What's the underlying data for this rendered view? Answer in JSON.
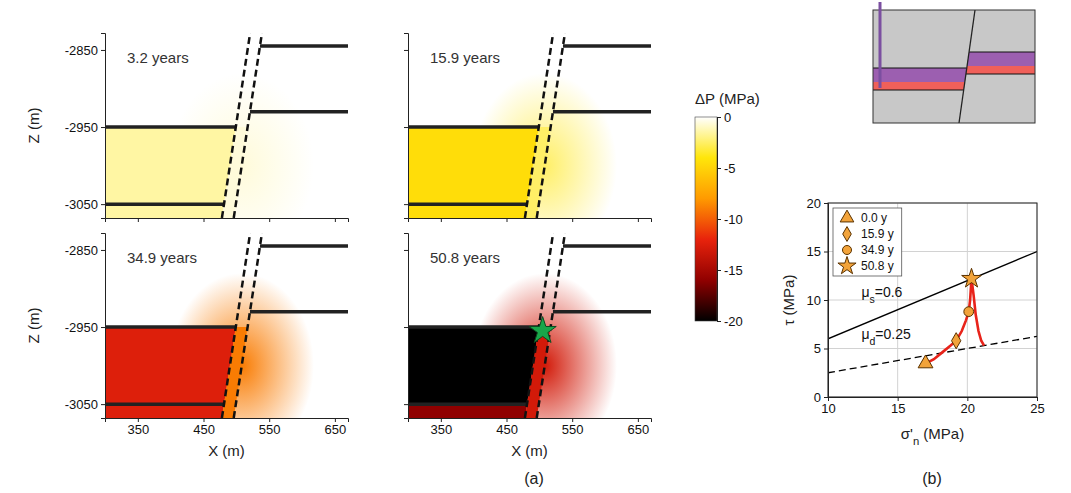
{
  "chart_data": [
    {
      "type": "heatmap",
      "title": "3.2 years",
      "ylabel": "Z (m)",
      "xlim": [
        300,
        670
      ],
      "ylim": [
        -3068,
        -2828
      ],
      "xticks": [
        350,
        450,
        550,
        650
      ],
      "yticks": [
        -3050,
        -2950,
        -2850
      ],
      "tick_labels": "y",
      "cells": {
        "reservoir": -1.5,
        "below": -1.5,
        "fault": -0.6
      }
    },
    {
      "type": "heatmap",
      "title": "15.9 years",
      "xlim": [
        300,
        670
      ],
      "ylim": [
        -3068,
        -2828
      ],
      "xticks": [
        350,
        450,
        550,
        650
      ],
      "yticks": [
        -3050,
        -2950,
        -2850
      ],
      "tick_labels": false,
      "cells": {
        "reservoir": -4.5,
        "below": -4.5,
        "fault": -2.5
      }
    },
    {
      "type": "heatmap",
      "title": "34.9 years",
      "xlabel": "X (m)",
      "ylabel": "Z (m)",
      "xlim": [
        300,
        670
      ],
      "ylim": [
        -3068,
        -2828
      ],
      "xticks": [
        350,
        450,
        550,
        650
      ],
      "yticks": [
        -3050,
        -2950,
        -2850
      ],
      "tick_labels": true,
      "cells": {
        "reservoir": -12.5,
        "below": -12.5,
        "fault": -9
      }
    },
    {
      "type": "heatmap",
      "title": "50.8 years",
      "xlabel": "X (m)",
      "xlim": [
        300,
        670
      ],
      "ylim": [
        -3068,
        -2828
      ],
      "xticks": [
        350,
        450,
        550,
        650
      ],
      "yticks": [
        -3050,
        -2950,
        -2850
      ],
      "tick_labels": "x",
      "cells": {
        "reservoir": -20,
        "below": -16,
        "fault": -13
      },
      "points": [
        {
          "x": 505,
          "y": -2955
        }
      ],
      "marker": "star",
      "color": "#1aa64a"
    },
    {
      "type": "line",
      "xlabel": "σ'n (MPa)",
      "ylabel": "τ (MPa)",
      "xlim": [
        10,
        25
      ],
      "ylim": [
        0,
        20
      ],
      "xticks": [
        10,
        15,
        20,
        25
      ],
      "yticks": [
        0,
        5,
        10,
        15,
        20
      ],
      "grid": true,
      "legend": "upper left",
      "series": [
        {
          "name": "μs=0.6",
          "x": [
            10,
            25
          ],
          "values": [
            6,
            15
          ],
          "color": "#000000",
          "line_style": "solid"
        },
        {
          "name": "μd=0.25",
          "x": [
            10,
            25
          ],
          "values": [
            2.5,
            6.25
          ],
          "color": "#000000",
          "line_style": "dashed"
        },
        {
          "x": [
            17.0,
            17.6,
            18.2,
            18.8,
            19.2,
            19.6,
            19.9,
            20.1,
            20.2,
            20.3,
            20.45,
            20.6,
            20.8,
            21.0,
            21.2
          ],
          "values": [
            3.45,
            3.9,
            4.6,
            5.3,
            5.8,
            6.8,
            7.9,
            8.8,
            10.0,
            12.2,
            10.5,
            8.5,
            6.8,
            5.8,
            5.3
          ],
          "color": "#e8231a",
          "line_style": "solid"
        },
        {
          "name": "0.0 y",
          "type": "scatter",
          "x": [
            17.0
          ],
          "values": [
            3.45
          ],
          "marker": "triangle",
          "color": "#f2a33a"
        },
        {
          "name": "15.9 y",
          "type": "scatter",
          "x": [
            19.2
          ],
          "values": [
            5.8
          ],
          "marker": "diamond",
          "color": "#f2a33a"
        },
        {
          "name": "34.9 y",
          "type": "scatter",
          "x": [
            20.1
          ],
          "values": [
            8.8
          ],
          "marker": "circle",
          "color": "#f2a33a"
        },
        {
          "name": "50.8 y",
          "type": "scatter",
          "x": [
            20.3
          ],
          "values": [
            12.2
          ],
          "marker": "star",
          "color": "#f2a33a"
        }
      ]
    }
  ],
  "geometry": {
    "layers_left": [
      -2950,
      -3050
    ],
    "layers_right": [
      -2845,
      -2930
    ],
    "fault_left": {
      "x": [
        478,
        521
      ],
      "y": [
        -3068,
        -2828
      ]
    },
    "fault_right": {
      "x": [
        496,
        539
      ],
      "y": [
        -3068,
        -2828
      ]
    }
  },
  "colorbar": {
    "label": "ΔP (MPa)",
    "range": [
      -20,
      0
    ],
    "ticks": [
      0,
      -5,
      -10,
      -15,
      -20
    ]
  },
  "panel_labels": [
    "(a)",
    "(b)"
  ]
}
